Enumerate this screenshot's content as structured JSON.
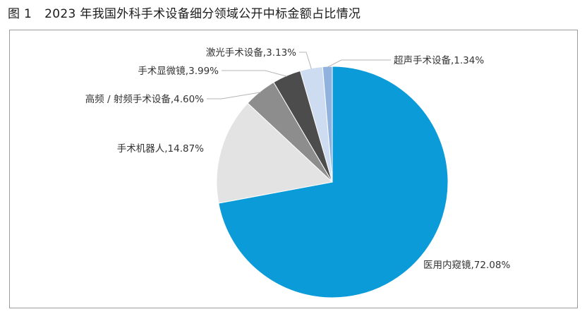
{
  "figure": {
    "number": "图 1",
    "title": "2023 年我国外科手术设备细分领域公开中标金额占比情况"
  },
  "chart_data": {
    "type": "pie",
    "title": "2023 年我国外科手术设备细分领域公开中标金额占比情况",
    "unit": "%",
    "start_angle_deg": 0,
    "direction": "clockwise",
    "slices": [
      {
        "name": "医用内窥镜",
        "value": 72.08,
        "label": "医用内窥镜,72.08%",
        "color": "#0b9bd9"
      },
      {
        "name": "手术机器人",
        "value": 14.87,
        "label": "手术机器人,14.87%",
        "color": "#e3e3e3"
      },
      {
        "name": "高频 / 射频手术设备",
        "value": 4.6,
        "label": "高频 / 射频手术设备,4.60%",
        "color": "#8d8d8d"
      },
      {
        "name": "手术显微镜",
        "value": 3.99,
        "label": "手术显微镜,3.99%",
        "color": "#4c4c4c"
      },
      {
        "name": "激光手术设备",
        "value": 3.13,
        "label": "激光手术设备,3.13%",
        "color": "#cddcf0"
      },
      {
        "name": "超声手术设备",
        "value": 1.34,
        "label": "超声手术设备,1.34%",
        "color": "#8fb3de"
      }
    ]
  }
}
